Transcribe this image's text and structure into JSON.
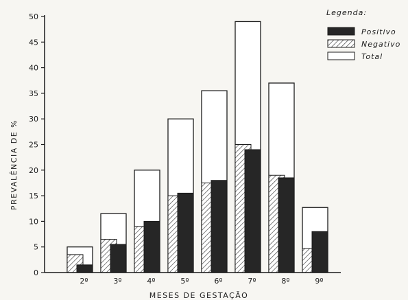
{
  "chart_data": {
    "type": "bar",
    "xlabel": "MESES DE GESTAÇÃO",
    "ylabel": "PREVALÊNCIA DE %",
    "ylim": [
      0,
      50
    ],
    "yticks": [
      "0",
      "5",
      "10",
      "15",
      "20",
      "25",
      "30",
      "35",
      "40",
      "45",
      "50"
    ],
    "categories": [
      "2º",
      "3º",
      "4º",
      "5º",
      "6º",
      "7º",
      "8º",
      "9º"
    ],
    "series": [
      {
        "name": "Positivo",
        "values": [
          1.5,
          5.5,
          10,
          15.5,
          18,
          24,
          18.5,
          8
        ]
      },
      {
        "name": "Negativo",
        "values": [
          3.5,
          6.5,
          9,
          15,
          17.5,
          25,
          19,
          4.7
        ]
      },
      {
        "name": "Total",
        "values": [
          5,
          11.5,
          20,
          30,
          35.5,
          49,
          37,
          12.7
        ]
      }
    ],
    "legend": {
      "title": "Legenda:",
      "position": "top-right"
    },
    "grid": false
  },
  "colors": {
    "positivo": "#262626",
    "negativo_hatch": "#3a3a3a",
    "total_fill": "#ffffff",
    "axis": "#1c1c1c",
    "background": "#f7f6f2"
  }
}
